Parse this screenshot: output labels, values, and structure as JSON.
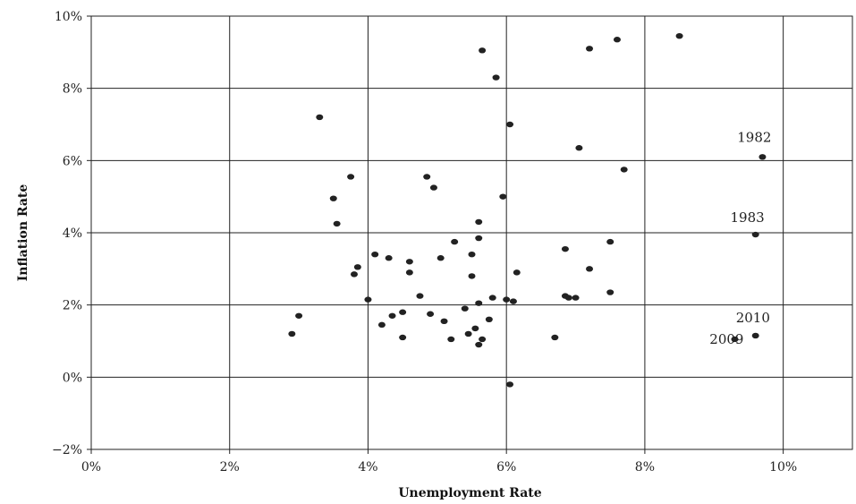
{
  "chart_data": {
    "type": "scatter",
    "xlabel": "Unemployment Rate",
    "ylabel": "Inflation Rate",
    "xlim": [
      0,
      11
    ],
    "ylim": [
      -2,
      10
    ],
    "x_ticks": [
      0,
      2,
      4,
      6,
      8,
      10
    ],
    "x_tick_labels": [
      "0%",
      "2%",
      "4%",
      "6%",
      "8%",
      "10%"
    ],
    "y_ticks": [
      -2,
      0,
      2,
      4,
      6,
      8,
      10
    ],
    "y_tick_labels": [
      "−2%",
      "0%",
      "2%",
      "4%",
      "6%",
      "8%",
      "10%"
    ],
    "grid": true,
    "points": [
      {
        "x": 2.9,
        "y": 1.2
      },
      {
        "x": 3.0,
        "y": 1.7
      },
      {
        "x": 3.3,
        "y": 7.2
      },
      {
        "x": 3.5,
        "y": 4.95
      },
      {
        "x": 3.55,
        "y": 4.25
      },
      {
        "x": 3.75,
        "y": 5.55
      },
      {
        "x": 3.8,
        "y": 2.85
      },
      {
        "x": 3.85,
        "y": 3.05
      },
      {
        "x": 4.0,
        "y": 2.15
      },
      {
        "x": 4.1,
        "y": 3.4
      },
      {
        "x": 4.2,
        "y": 1.45
      },
      {
        "x": 4.3,
        "y": 3.3
      },
      {
        "x": 4.35,
        "y": 1.7
      },
      {
        "x": 4.5,
        "y": 1.8
      },
      {
        "x": 4.5,
        "y": 1.1
      },
      {
        "x": 4.6,
        "y": 3.2
      },
      {
        "x": 4.6,
        "y": 2.9
      },
      {
        "x": 4.75,
        "y": 2.25
      },
      {
        "x": 4.85,
        "y": 5.55
      },
      {
        "x": 4.9,
        "y": 1.75
      },
      {
        "x": 4.95,
        "y": 5.25
      },
      {
        "x": 5.05,
        "y": 3.3
      },
      {
        "x": 5.1,
        "y": 1.55
      },
      {
        "x": 5.2,
        "y": 1.05
      },
      {
        "x": 5.25,
        "y": 3.75
      },
      {
        "x": 5.4,
        "y": 1.9
      },
      {
        "x": 5.45,
        "y": 1.2
      },
      {
        "x": 5.5,
        "y": 3.4
      },
      {
        "x": 5.5,
        "y": 2.8
      },
      {
        "x": 5.55,
        "y": 1.35
      },
      {
        "x": 5.6,
        "y": 0.9
      },
      {
        "x": 5.6,
        "y": 2.05
      },
      {
        "x": 5.6,
        "y": 4.3
      },
      {
        "x": 5.6,
        "y": 3.85
      },
      {
        "x": 5.65,
        "y": 1.05
      },
      {
        "x": 5.65,
        "y": 9.05
      },
      {
        "x": 5.75,
        "y": 1.6
      },
      {
        "x": 5.8,
        "y": 2.2
      },
      {
        "x": 5.85,
        "y": 8.3
      },
      {
        "x": 5.95,
        "y": 5.0
      },
      {
        "x": 6.0,
        "y": 2.15
      },
      {
        "x": 6.05,
        "y": 7.0
      },
      {
        "x": 6.05,
        "y": -0.2
      },
      {
        "x": 6.1,
        "y": 2.1
      },
      {
        "x": 6.15,
        "y": 2.9
      },
      {
        "x": 6.7,
        "y": 1.1
      },
      {
        "x": 6.85,
        "y": 3.55
      },
      {
        "x": 6.85,
        "y": 2.25
      },
      {
        "x": 6.9,
        "y": 2.2
      },
      {
        "x": 7.0,
        "y": 2.2
      },
      {
        "x": 7.05,
        "y": 6.35
      },
      {
        "x": 7.2,
        "y": 9.1
      },
      {
        "x": 7.2,
        "y": 3.0
      },
      {
        "x": 7.5,
        "y": 3.75
      },
      {
        "x": 7.5,
        "y": 2.35
      },
      {
        "x": 7.6,
        "y": 9.35
      },
      {
        "x": 7.7,
        "y": 5.75
      },
      {
        "x": 8.5,
        "y": 9.45
      },
      {
        "x": 9.3,
        "y": 1.05
      },
      {
        "x": 9.6,
        "y": 3.95
      },
      {
        "x": 9.6,
        "y": 1.15
      },
      {
        "x": 9.7,
        "y": 6.1
      }
    ],
    "annotations": [
      {
        "text": "1982",
        "x": 9.7,
        "y": 6.1
      },
      {
        "text": "1983",
        "x": 9.6,
        "y": 3.95
      },
      {
        "text": "2010",
        "x": 9.6,
        "y": 1.15
      },
      {
        "text": "2009",
        "x": 9.3,
        "y": 1.05
      }
    ]
  }
}
